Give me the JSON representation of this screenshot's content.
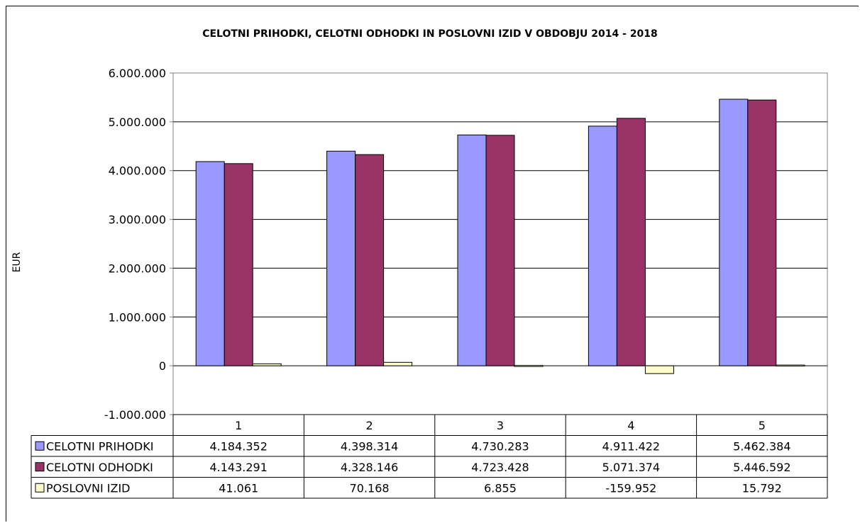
{
  "chart_data": {
    "type": "bar",
    "title": "CELOTNI PRIHODKI, CELOTNI ODHODKI IN POSLOVNI IZID V OBDOBJU 2014 - 2018",
    "xlabel": "",
    "ylabel": "EUR",
    "ylim": [
      -1000000,
      6000000
    ],
    "yticks": [
      -1000000,
      0,
      1000000,
      2000000,
      3000000,
      4000000,
      5000000,
      6000000
    ],
    "ytick_labels": [
      "-1.000.000",
      "0",
      "1.000.000",
      "2.000.000",
      "3.000.000",
      "4.000.000",
      "5.000.000",
      "6.000.000"
    ],
    "grid": true,
    "legend": "data-table",
    "categories": [
      "1",
      "2",
      "3",
      "4",
      "5"
    ],
    "series": [
      {
        "name": "CELOTNI PRIHODKI",
        "color": "#9999ff",
        "values": [
          4184352,
          4398314,
          4730283,
          4911422,
          5462384
        ],
        "labels": [
          "4.184.352",
          "4.398.314",
          "4.730.283",
          "4.911.422",
          "5.462.384"
        ]
      },
      {
        "name": "CELOTNI ODHODKI",
        "color": "#993366",
        "values": [
          4143291,
          4328146,
          4723428,
          5071374,
          5446592
        ],
        "labels": [
          "4.143.291",
          "4.328.146",
          "4.723.428",
          "5.071.374",
          "5.446.592"
        ]
      },
      {
        "name": "POSLOVNI IZID",
        "color": "#ffffcc",
        "values": [
          41061,
          70168,
          6855,
          -159952,
          15792
        ],
        "labels": [
          "41.061",
          "70.168",
          "6.855",
          "-159.952",
          "15.792"
        ]
      }
    ]
  }
}
